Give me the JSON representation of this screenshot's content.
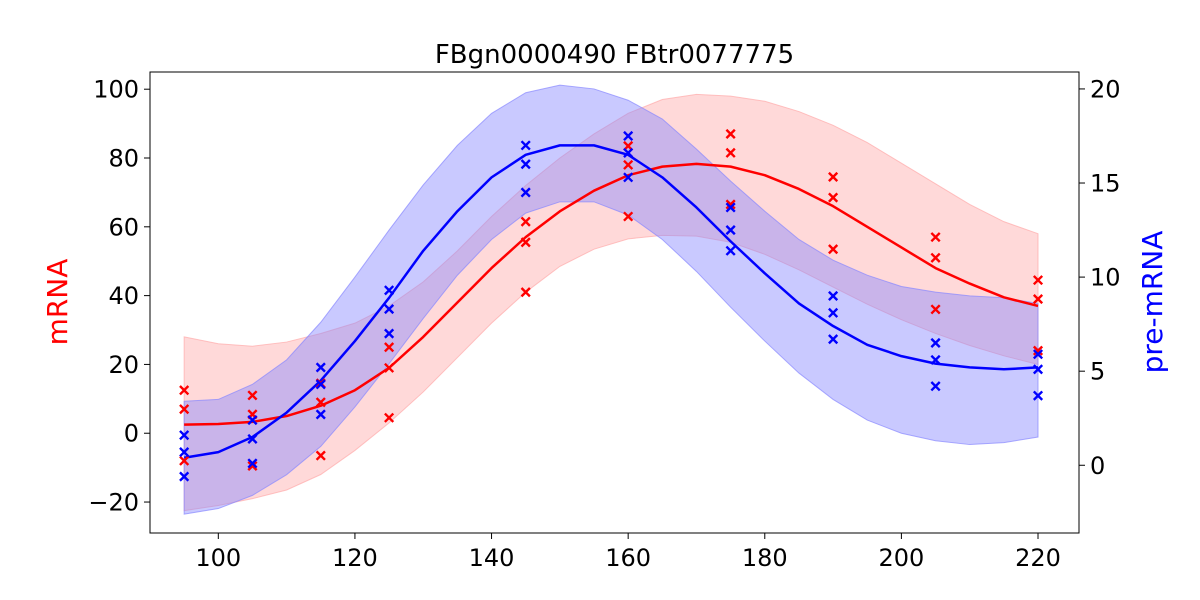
{
  "chart_data": {
    "type": "line",
    "title": "FBgn0000490 FBtr0077775",
    "xlabel": "",
    "ylabel_left": "mRNA",
    "ylabel_right": "pre-mRNA",
    "xlim": [
      90,
      226
    ],
    "ylim_left": [
      -29,
      105
    ],
    "ylim_right": [
      -3.6,
      20.9
    ],
    "x_ticks": [
      100,
      120,
      140,
      160,
      180,
      200,
      220
    ],
    "y_ticks_left": [
      -20,
      0,
      20,
      40,
      60,
      80,
      100
    ],
    "y_ticks_right": [
      0,
      5,
      10,
      15,
      20
    ],
    "tick_labels": {
      "x": [
        "100",
        "120",
        "140",
        "160",
        "180",
        "200",
        "220"
      ],
      "left": [
        "−20",
        "0",
        "20",
        "40",
        "60",
        "80",
        "100"
      ],
      "right": [
        "0",
        "5",
        "10",
        "15",
        "20"
      ]
    },
    "grid": false,
    "colors": {
      "mRNA": "#ff0000",
      "pre-mRNA": "#0000ff",
      "mRNA_band": "#ffaaaa",
      "pre-mRNA_band": "#8888ff"
    },
    "series": [
      {
        "name": "mRNA",
        "axis": "left",
        "fit": {
          "x": [
            95,
            100,
            105,
            110,
            115,
            120,
            125,
            130,
            135,
            140,
            145,
            150,
            155,
            160,
            165,
            170,
            175,
            180,
            185,
            190,
            195,
            200,
            205,
            210,
            215,
            220
          ],
          "y": [
            2.5,
            2.7,
            3.3,
            5,
            8,
            12.5,
            19,
            28,
            38,
            48,
            57,
            64.5,
            70.5,
            75,
            77.5,
            78.3,
            77.5,
            75,
            71,
            66,
            60,
            54,
            48,
            43.5,
            39.5,
            37
          ],
          "lower": [
            -22.5,
            -21,
            -19,
            -16.5,
            -12,
            -5,
            3,
            12,
            22,
            32,
            41,
            48.5,
            53.5,
            56.5,
            57.5,
            57.3,
            55.5,
            52,
            47.5,
            42.5,
            37.5,
            33,
            29,
            25.5,
            22.5,
            20
          ],
          "upper": [
            28,
            26,
            25.3,
            26.5,
            29,
            32,
            37,
            44,
            53,
            63,
            72,
            80,
            87,
            93,
            97,
            98.5,
            98,
            96.5,
            93.5,
            89.5,
            84.5,
            78.5,
            72.5,
            66.5,
            61.5,
            58
          ]
        },
        "points": [
          {
            "x": 95,
            "y": 12.5
          },
          {
            "x": 95,
            "y": 7
          },
          {
            "x": 95,
            "y": -8
          },
          {
            "x": 105,
            "y": 11
          },
          {
            "x": 105,
            "y": 5.5
          },
          {
            "x": 105,
            "y": -9.5
          },
          {
            "x": 115,
            "y": 14.5
          },
          {
            "x": 115,
            "y": 9
          },
          {
            "x": 115,
            "y": -6.5
          },
          {
            "x": 125,
            "y": 25
          },
          {
            "x": 125,
            "y": 19
          },
          {
            "x": 125,
            "y": 4.5
          },
          {
            "x": 145,
            "y": 61.5
          },
          {
            "x": 145,
            "y": 55.5
          },
          {
            "x": 145,
            "y": 41
          },
          {
            "x": 160,
            "y": 83.5
          },
          {
            "x": 160,
            "y": 78
          },
          {
            "x": 160,
            "y": 63
          },
          {
            "x": 175,
            "y": 87
          },
          {
            "x": 175,
            "y": 81.5
          },
          {
            "x": 175,
            "y": 66.5
          },
          {
            "x": 190,
            "y": 74.5
          },
          {
            "x": 190,
            "y": 68.5
          },
          {
            "x": 190,
            "y": 53.5
          },
          {
            "x": 205,
            "y": 57
          },
          {
            "x": 205,
            "y": 51
          },
          {
            "x": 205,
            "y": 36
          },
          {
            "x": 220,
            "y": 44.5
          },
          {
            "x": 220,
            "y": 39
          },
          {
            "x": 220,
            "y": 24
          }
        ]
      },
      {
        "name": "pre-mRNA",
        "axis": "right",
        "fit": {
          "x": [
            95,
            100,
            105,
            110,
            115,
            120,
            125,
            130,
            135,
            140,
            145,
            150,
            155,
            160,
            165,
            170,
            175,
            180,
            185,
            190,
            195,
            200,
            205,
            210,
            215,
            220
          ],
          "y": [
            0.4,
            0.7,
            1.5,
            2.8,
            4.5,
            6.6,
            8.9,
            11.4,
            13.5,
            15.3,
            16.5,
            17.0,
            17.0,
            16.5,
            15.3,
            13.7,
            11.9,
            10.2,
            8.6,
            7.4,
            6.4,
            5.8,
            5.4,
            5.2,
            5.1,
            5.2
          ],
          "lower": [
            -2.6,
            -2.3,
            -1.6,
            -0.5,
            1.0,
            3.1,
            5.4,
            7.8,
            10.1,
            12.0,
            13.4,
            14.0,
            14.0,
            13.3,
            12.0,
            10.3,
            8.4,
            6.6,
            4.9,
            3.5,
            2.4,
            1.7,
            1.3,
            1.1,
            1.2,
            1.5
          ],
          "upper": [
            3.4,
            3.5,
            4.3,
            5.6,
            7.6,
            10.0,
            12.5,
            14.9,
            17.0,
            18.7,
            19.8,
            20.2,
            20.0,
            19.4,
            18.4,
            16.8,
            15.1,
            13.5,
            12.0,
            10.9,
            10.1,
            9.5,
            9.2,
            9.0,
            8.9,
            8.6
          ]
        },
        "points": [
          {
            "x": 95,
            "y": 1.6
          },
          {
            "x": 95,
            "y": 0.7
          },
          {
            "x": 95,
            "y": -0.6
          },
          {
            "x": 105,
            "y": 2.4
          },
          {
            "x": 105,
            "y": 1.4
          },
          {
            "x": 105,
            "y": 0.1
          },
          {
            "x": 115,
            "y": 5.2
          },
          {
            "x": 115,
            "y": 4.3
          },
          {
            "x": 115,
            "y": 2.7
          },
          {
            "x": 125,
            "y": 9.3
          },
          {
            "x": 125,
            "y": 8.3
          },
          {
            "x": 125,
            "y": 7.0
          },
          {
            "x": 145,
            "y": 17.0
          },
          {
            "x": 145,
            "y": 16.0
          },
          {
            "x": 145,
            "y": 14.5
          },
          {
            "x": 160,
            "y": 17.5
          },
          {
            "x": 160,
            "y": 16.6
          },
          {
            "x": 160,
            "y": 15.3
          },
          {
            "x": 175,
            "y": 13.7
          },
          {
            "x": 175,
            "y": 12.5
          },
          {
            "x": 175,
            "y": 11.4
          },
          {
            "x": 190,
            "y": 9.0
          },
          {
            "x": 190,
            "y": 8.1
          },
          {
            "x": 190,
            "y": 6.7
          },
          {
            "x": 205,
            "y": 6.5
          },
          {
            "x": 205,
            "y": 5.6
          },
          {
            "x": 205,
            "y": 4.2
          },
          {
            "x": 220,
            "y": 5.9
          },
          {
            "x": 220,
            "y": 5.1
          },
          {
            "x": 220,
            "y": 3.7
          }
        ]
      }
    ]
  }
}
